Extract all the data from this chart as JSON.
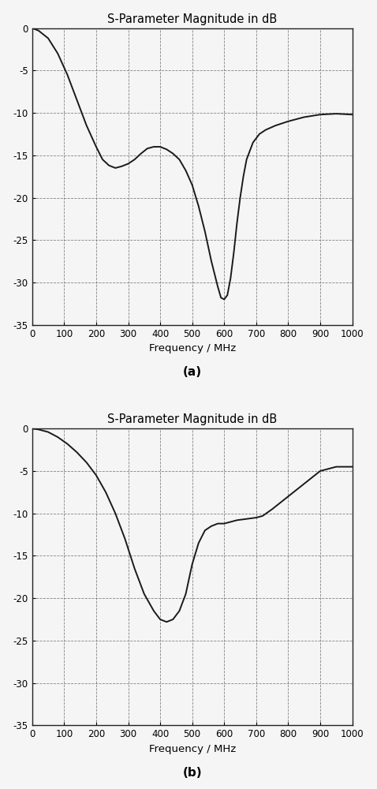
{
  "title": "S-Parameter Magnitude in dB",
  "xlabel": "Frequency / MHz",
  "xlim": [
    0,
    1000
  ],
  "ylim": [
    -35,
    0
  ],
  "yticks": [
    0,
    -5,
    -10,
    -15,
    -20,
    -25,
    -30,
    -35
  ],
  "xticks": [
    0,
    100,
    200,
    300,
    400,
    500,
    600,
    700,
    800,
    900,
    1000
  ],
  "xtick_labels": [
    "0",
    "100",
    "200",
    "300",
    "400",
    "500",
    "600",
    "700",
    "800",
    "900",
    "1000"
  ],
  "line_color": "#1a1a1a",
  "background_color": "#f5f5f5",
  "label_a": "(a)",
  "label_b": "(b)",
  "plot_a": {
    "x": [
      0,
      20,
      50,
      80,
      110,
      140,
      170,
      200,
      220,
      240,
      260,
      280,
      300,
      320,
      340,
      360,
      380,
      400,
      420,
      440,
      460,
      480,
      500,
      520,
      540,
      560,
      580,
      590,
      600,
      610,
      620,
      630,
      640,
      650,
      660,
      670,
      690,
      710,
      730,
      760,
      800,
      850,
      900,
      950,
      1000
    ],
    "y": [
      0,
      -0.3,
      -1.2,
      -3.0,
      -5.5,
      -8.5,
      -11.5,
      -14.0,
      -15.5,
      -16.2,
      -16.5,
      -16.3,
      -16.0,
      -15.5,
      -14.8,
      -14.2,
      -14.0,
      -14.0,
      -14.3,
      -14.8,
      -15.5,
      -16.8,
      -18.5,
      -21.0,
      -24.0,
      -27.5,
      -30.5,
      -31.8,
      -32.0,
      -31.5,
      -29.5,
      -26.5,
      -23.0,
      -20.0,
      -17.5,
      -15.5,
      -13.5,
      -12.5,
      -12.0,
      -11.5,
      -11.0,
      -10.5,
      -10.2,
      -10.1,
      -10.2
    ]
  },
  "plot_b": {
    "x": [
      0,
      20,
      50,
      80,
      110,
      140,
      170,
      200,
      230,
      260,
      290,
      320,
      350,
      380,
      400,
      420,
      440,
      460,
      480,
      500,
      520,
      540,
      560,
      580,
      600,
      620,
      640,
      660,
      680,
      700,
      720,
      750,
      800,
      850,
      900,
      950,
      1000
    ],
    "y": [
      0,
      -0.1,
      -0.4,
      -1.0,
      -1.8,
      -2.8,
      -4.0,
      -5.5,
      -7.5,
      -10.0,
      -13.0,
      -16.5,
      -19.5,
      -21.5,
      -22.5,
      -22.8,
      -22.5,
      -21.5,
      -19.5,
      -16.0,
      -13.5,
      -12.0,
      -11.5,
      -11.2,
      -11.2,
      -11.0,
      -10.8,
      -10.7,
      -10.6,
      -10.5,
      -10.3,
      -9.5,
      -8.0,
      -6.5,
      -5.0,
      -4.5,
      -4.5
    ]
  }
}
